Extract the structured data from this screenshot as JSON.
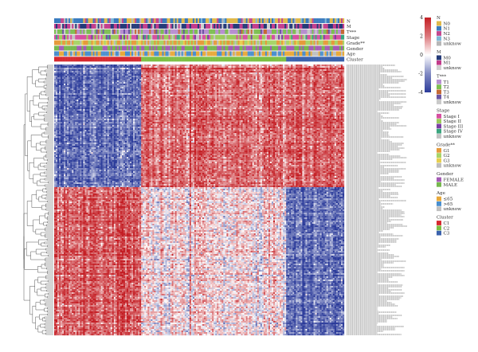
{
  "chart_data": {
    "type": "heatmap",
    "title": "",
    "color_scale": {
      "ticks": [
        4,
        2,
        0,
        -2,
        -4
      ],
      "colors": [
        "#2b3b9a",
        "#ffffff",
        "#c41e24"
      ]
    },
    "annotation_tracks": [
      {
        "name": "N",
        "legend_title": "N",
        "levels": [
          {
            "label": "N0",
            "color": "#e0b94a"
          },
          {
            "label": "N1",
            "color": "#3a7bbf"
          },
          {
            "label": "N2",
            "color": "#c4478e"
          },
          {
            "label": "N3",
            "color": "#7fb8d6"
          },
          {
            "label": "unknow",
            "color": "#b7b7b7"
          }
        ]
      },
      {
        "name": "M",
        "legend_title": "M",
        "levels": [
          {
            "label": "M0",
            "color": "#243a78"
          },
          {
            "label": "M1",
            "color": "#c23b8b"
          },
          {
            "label": "unknow",
            "color": "#cfcfcf"
          }
        ]
      },
      {
        "name": "T***",
        "legend_title": "T***",
        "levels": [
          {
            "label": "T1",
            "color": "#b78fd0"
          },
          {
            "label": "T2",
            "color": "#7dbf52"
          },
          {
            "label": "T3",
            "color": "#c56a35"
          },
          {
            "label": "T4",
            "color": "#6b55a3"
          },
          {
            "label": "unknow",
            "color": "#c9c9c9"
          }
        ]
      },
      {
        "name": "Stage",
        "legend_title": "Stage",
        "levels": [
          {
            "label": "Stage I",
            "color": "#d64fa0"
          },
          {
            "label": "Stage II",
            "color": "#9ccb5b"
          },
          {
            "label": "Stage III",
            "color": "#7b3fa3"
          },
          {
            "label": "Stage IV",
            "color": "#3aa57e"
          },
          {
            "label": "unknow",
            "color": "#c2c2c2"
          }
        ]
      },
      {
        "name": "Grade**",
        "legend_title": "Grade**",
        "levels": [
          {
            "label": "G1",
            "color": "#e69a3b"
          },
          {
            "label": "G2",
            "color": "#a8d468"
          },
          {
            "label": "G3",
            "color": "#e7cf4f"
          },
          {
            "label": "unknow",
            "color": "#bdbdbd"
          }
        ]
      },
      {
        "name": "Gender",
        "legend_title": "Gender",
        "levels": [
          {
            "label": "FEMALE",
            "color": "#a45bb5"
          },
          {
            "label": "MALE",
            "color": "#76b84d"
          }
        ]
      },
      {
        "name": "Age",
        "legend_title": "Age",
        "levels": [
          {
            "label": "≤65",
            "color": "#e8a93a"
          },
          {
            "label": ">65",
            "color": "#4a8fcf"
          },
          {
            "label": "unknow",
            "color": "#c0c0c0"
          }
        ]
      },
      {
        "name": "Cluster",
        "legend_title": "Cluster",
        "levels": [
          {
            "label": "C1",
            "color": "#d6282f"
          },
          {
            "label": "C2",
            "color": "#7cbf43"
          },
          {
            "label": "C3",
            "color": "#3b62ad"
          }
        ]
      }
    ],
    "sample_clusters": [
      {
        "label": "C1",
        "fraction": 0.3
      },
      {
        "label": "C2",
        "fraction": 0.5
      },
      {
        "label": "C3",
        "fraction": 0.2
      }
    ],
    "gene_groups": [
      {
        "name": "upper",
        "fraction": 0.45,
        "pattern": [
          -1,
          0.9,
          1
        ]
      },
      {
        "name": "lower",
        "fraction": 0.55,
        "pattern": [
          1,
          0.15,
          -1
        ]
      }
    ]
  }
}
